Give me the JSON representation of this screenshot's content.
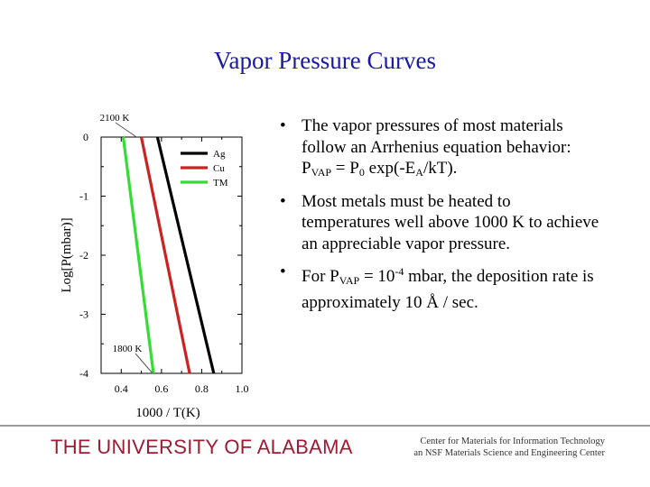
{
  "slide": {
    "title": "Vapor Pressure Curves",
    "bullets": {
      "b1_text": "The vapor pressures of most materials follow an Arrhenius equation behavior:",
      "b1_eq_p": "P",
      "b1_eq_sub_vap": "VAP",
      "b1_eq_eq": " = P",
      "b1_eq_sub_0": "0",
      "b1_eq_exp": " exp(-E",
      "b1_eq_sub_a": "A",
      "b1_eq_end": "/kT).",
      "b2_text": "Most metals must be heated to temperatures well above 1000 K to achieve an appreciable vapor pressure.",
      "b3_start": "For P",
      "b3_sub_vap": "VAP",
      "b3_eq": " = 10",
      "b3_sup": "-4",
      "b3_end": " mbar, the deposition rate is approximately 10 Å / sec."
    }
  },
  "footer": {
    "university": "THE UNIVERSITY OF ALABAMA",
    "center_line1": "Center for Materials for Information Technology",
    "center_line2": "an NSF Materials Science and Engineering Center"
  },
  "colors": {
    "title": "#1a1aa0",
    "university": "#9e1b32",
    "Ag": "#000000",
    "Cu": "#cc2222",
    "TM": "#33dd33"
  },
  "chart_data": {
    "type": "line",
    "xlabel": "1000 / T(K)",
    "ylabel": "Log[P(mbar)]",
    "xlim": [
      0.3,
      1.0
    ],
    "ylim": [
      -4,
      0
    ],
    "x_ticks": [
      "0.4",
      "0.6",
      "0.8",
      "1.0"
    ],
    "y_ticks": [
      "0",
      "-1",
      "-2",
      "-3",
      "-4"
    ],
    "legend_position": "top-right",
    "series": [
      {
        "name": "Ag",
        "x": [
          0.58,
          0.86
        ],
        "y": [
          0,
          -4
        ]
      },
      {
        "name": "Cu",
        "x": [
          0.5,
          0.74
        ],
        "y": [
          0,
          -4
        ]
      },
      {
        "name": "TM",
        "x": [
          0.41,
          0.56
        ],
        "y": [
          0,
          -4
        ]
      }
    ],
    "annotations": [
      {
        "text": "2100 K",
        "x": 0.476,
        "y": 0
      },
      {
        "text": "1800 K",
        "x": 0.556,
        "y": -4
      }
    ]
  }
}
